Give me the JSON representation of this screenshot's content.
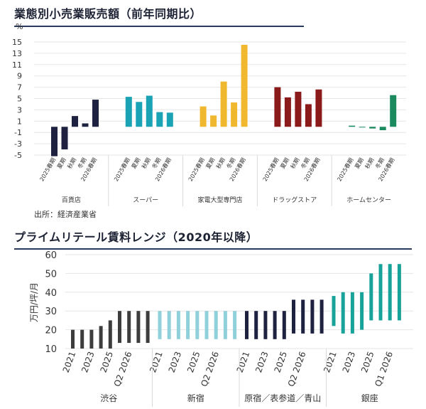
{
  "chart1": {
    "title": "業態別小売業販売額（前年同期比）",
    "unit": "%",
    "source": "出所：経済産業省"
  },
  "chart2": {
    "title": "プライムリテール賃料レンジ（2020年以降）",
    "ylabel": "万円/坪/月"
  },
  "chart_data": [
    {
      "type": "bar",
      "title": "業態別小売業販売額（前年同期比）",
      "ylabel": "%",
      "ylim": [
        -5,
        15
      ],
      "yticks": [
        15,
        13,
        11,
        9,
        7,
        5,
        3,
        1,
        -1,
        -3,
        -5
      ],
      "grid": true,
      "categories": [
        "2025春期",
        "夏期",
        "秋期",
        "冬期",
        "2026春期"
      ],
      "series": [
        {
          "name": "百貨店",
          "color": "#1f2140",
          "values": [
            -5.2,
            -4.0,
            1.9,
            0.6,
            4.8
          ]
        },
        {
          "name": "スーパー",
          "color": "#1aa3b5",
          "values": [
            5.3,
            4.4,
            5.5,
            2.6,
            2.5
          ]
        },
        {
          "name": "家電大型専門店",
          "color": "#f0b82e",
          "values": [
            3.6,
            2.0,
            8.0,
            4.3,
            14.5
          ]
        },
        {
          "name": "ドラッグストア",
          "color": "#8b1a1a",
          "values": [
            7.0,
            5.2,
            6.2,
            4.0,
            6.6
          ]
        },
        {
          "name": "ホームセンター",
          "color": "#1b8a5f",
          "values": [
            0.2,
            -0.1,
            -0.3,
            -0.6,
            5.6
          ]
        }
      ]
    },
    {
      "type": "range-bar",
      "title": "プライムリテール賃料レンジ（2020年以降）",
      "ylabel": "万円/坪/月",
      "ylim": [
        10,
        60
      ],
      "yticks": [
        60,
        50,
        40,
        30,
        20,
        10
      ],
      "grid": true,
      "series": [
        {
          "name": "渋谷",
          "color": "#3d3d3d",
          "ticks": [
            "2021",
            "2023",
            "2025",
            "Q2 2026"
          ],
          "ranges": [
            [
              10,
              20
            ],
            [
              10,
              20
            ],
            [
              10,
              20
            ],
            [
              10,
              22
            ],
            [
              10,
              25
            ],
            [
              13,
              30
            ],
            [
              13,
              30
            ],
            [
              13,
              30
            ],
            [
              13,
              30
            ]
          ]
        },
        {
          "name": "新宿",
          "color": "#8fd0da",
          "ticks": [
            "2021",
            "2023",
            "2025",
            "Q2 2026"
          ],
          "ranges": [
            [
              15,
              30
            ],
            [
              15,
              30
            ],
            [
              15,
              30
            ],
            [
              15,
              30
            ],
            [
              15,
              30
            ],
            [
              15,
              30
            ],
            [
              15,
              30
            ],
            [
              15,
              30
            ],
            [
              15,
              30
            ]
          ]
        },
        {
          "name": "原宿／表参道／青山",
          "color": "#1f2140",
          "ticks": [
            "2021",
            "2023",
            "2025",
            "Q2 2026"
          ],
          "ranges": [
            [
              15,
              30
            ],
            [
              15,
              30
            ],
            [
              15,
              30
            ],
            [
              15,
              30
            ],
            [
              15,
              30
            ],
            [
              18,
              36
            ],
            [
              18,
              36
            ],
            [
              18,
              36
            ],
            [
              18,
              36
            ]
          ]
        },
        {
          "name": "銀座",
          "color": "#18a39a",
          "ticks": [
            "2021",
            "2023",
            "2025",
            "Q1 2026"
          ],
          "ranges": [
            [
              22,
              38
            ],
            [
              18,
              40
            ],
            [
              18,
              40
            ],
            [
              20,
              40
            ],
            [
              25,
              50
            ],
            [
              25,
              55
            ],
            [
              25,
              55
            ],
            [
              25,
              55
            ]
          ]
        }
      ]
    }
  ]
}
